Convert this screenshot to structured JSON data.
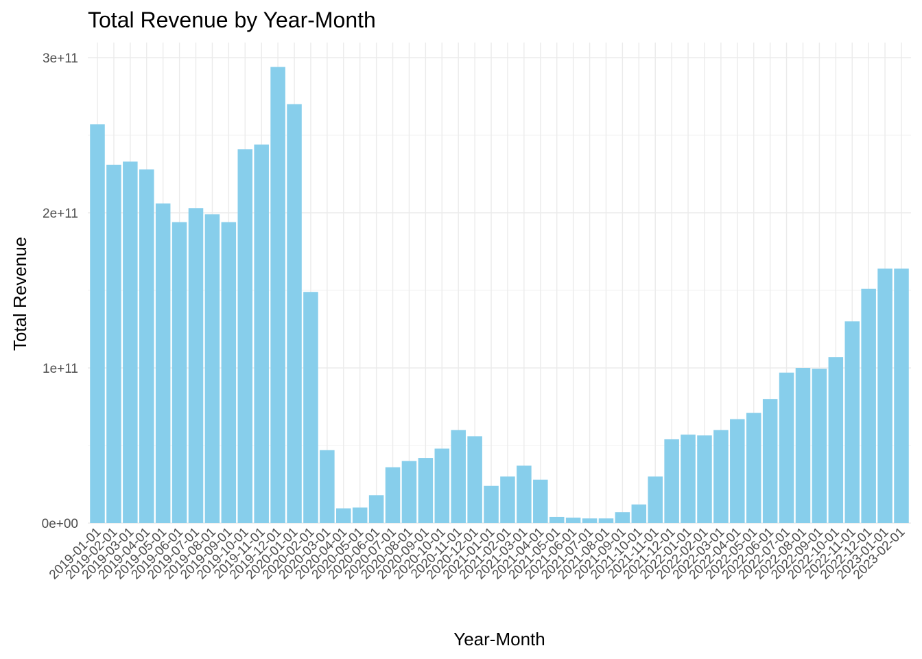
{
  "chart_data": {
    "type": "bar",
    "title": "Total Revenue by Year-Month",
    "xlabel": "Year-Month",
    "ylabel": "Total Revenue",
    "ylim": [
      0,
      300000000000
    ],
    "yticks": [
      0,
      100000000000,
      200000000000,
      300000000000
    ],
    "ytick_labels": [
      "0e+00",
      "1e+11",
      "2e+11",
      "3e+11"
    ],
    "grid": true,
    "bar_color": "#87CEEB",
    "categories": [
      "2019-01-01",
      "2019-02-01",
      "2019-03-01",
      "2019-04-01",
      "2019-05-01",
      "2019-06-01",
      "2019-07-01",
      "2019-08-01",
      "2019-09-01",
      "2019-10-01",
      "2019-11-01",
      "2019-12-01",
      "2020-01-01",
      "2020-02-01",
      "2020-03-01",
      "2020-04-01",
      "2020-05-01",
      "2020-06-01",
      "2020-07-01",
      "2020-08-01",
      "2020-09-01",
      "2020-10-01",
      "2020-11-01",
      "2020-12-01",
      "2021-01-01",
      "2021-02-01",
      "2021-03-01",
      "2021-04-01",
      "2021-05-01",
      "2021-06-01",
      "2021-07-01",
      "2021-08-01",
      "2021-09-01",
      "2021-10-01",
      "2021-11-01",
      "2021-12-01",
      "2022-01-01",
      "2022-02-01",
      "2022-03-01",
      "2022-04-01",
      "2022-05-01",
      "2022-06-01",
      "2022-07-01",
      "2022-08-01",
      "2022-09-01",
      "2022-10-01",
      "2022-11-01",
      "2022-12-01",
      "2023-01-01",
      "2023-02-01"
    ],
    "values": [
      257000000000,
      231000000000,
      233000000000,
      228000000000,
      206000000000,
      194000000000,
      203000000000,
      199000000000,
      194000000000,
      241000000000,
      244000000000,
      294000000000,
      270000000000,
      149000000000,
      47000000000,
      9500000000,
      10000000000,
      18000000000,
      36000000000,
      40000000000,
      42000000000,
      48000000000,
      60000000000,
      56000000000,
      24000000000,
      30000000000,
      37000000000,
      28000000000,
      4000000000,
      3500000000,
      3000000000,
      3000000000,
      7000000000,
      12000000000,
      30000000000,
      54000000000,
      57000000000,
      56500000000,
      60000000000,
      67000000000,
      71000000000,
      80000000000,
      97000000000,
      100000000000,
      99500000000,
      107000000000,
      130000000000,
      151000000000,
      164000000000,
      164000000000
    ]
  }
}
